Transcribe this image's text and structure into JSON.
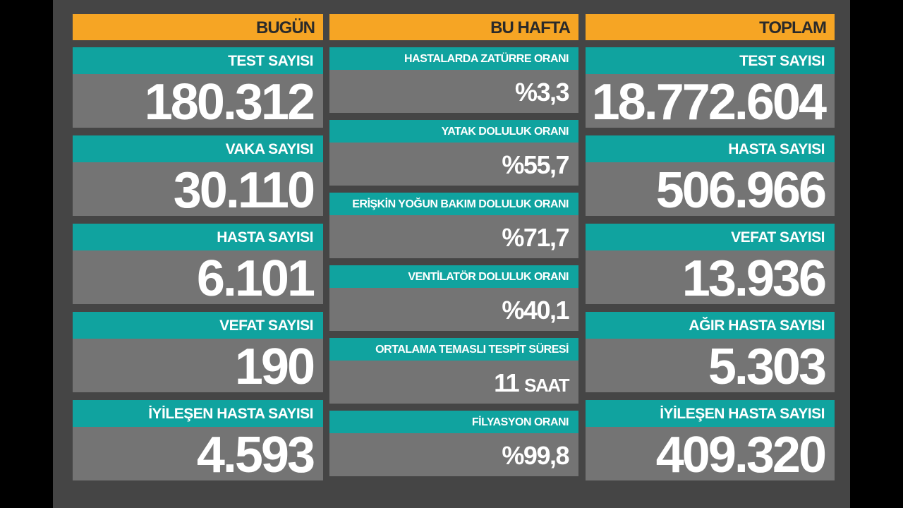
{
  "columns": [
    {
      "header": "BUGÜN",
      "cards": [
        {
          "label": "TEST SAYISI",
          "value": "180.312"
        },
        {
          "label": "VAKA SAYISI",
          "value": "30.110"
        },
        {
          "label": "HASTA SAYISI",
          "value": "6.101"
        },
        {
          "label": "VEFAT SAYISI",
          "value": "190"
        },
        {
          "label": "İYİLEŞEN HASTA SAYISI",
          "value": "4.593"
        }
      ]
    },
    {
      "header": "BU HAFTA",
      "cards": [
        {
          "label": "HASTALARDA ZATÜRRE ORANI",
          "value": "%3,3"
        },
        {
          "label": "YATAK DOLULUK ORANI",
          "value": "%55,7"
        },
        {
          "label": "ERİŞKİN YOĞUN BAKIM DOLULUK ORANI",
          "value": "%71,7"
        },
        {
          "label": "VENTİLATÖR DOLULUK ORANI",
          "value": "%40,1"
        },
        {
          "label": "ORTALAMA TEMASLI TESPİT SÜRESİ",
          "value": "11",
          "unit": "SAAT"
        },
        {
          "label": "FİLYASYON ORANI",
          "value": "%99,8"
        }
      ]
    },
    {
      "header": "TOPLAM",
      "cards": [
        {
          "label": "TEST SAYISI",
          "value": "18.772.604"
        },
        {
          "label": "HASTA SAYISI",
          "value": "506.966"
        },
        {
          "label": "VEFAT SAYISI",
          "value": "13.936"
        },
        {
          "label": "AĞIR HASTA SAYISI",
          "value": "5.303"
        },
        {
          "label": "İYİLEŞEN HASTA SAYISI",
          "value": "409.320"
        }
      ]
    }
  ]
}
